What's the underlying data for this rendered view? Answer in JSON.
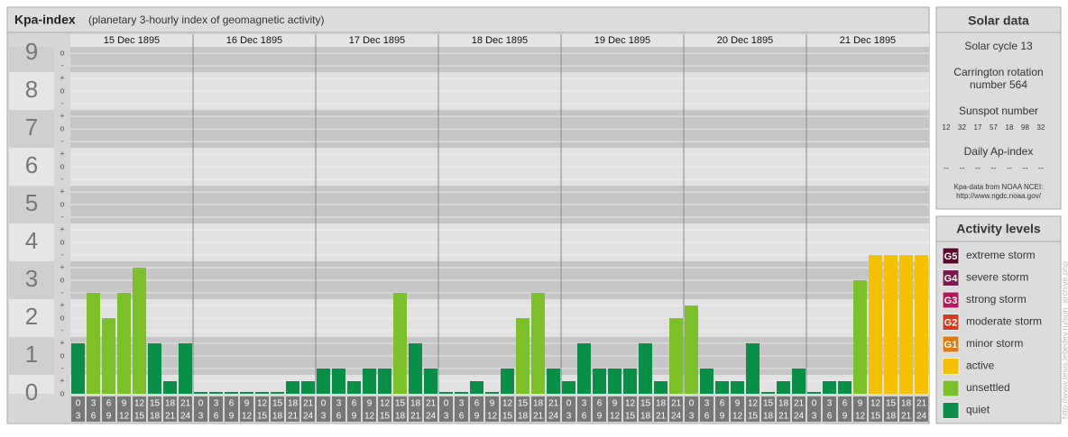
{
  "chart_data": {
    "type": "bar",
    "title": "Kpa-index",
    "subtitle": "(planetary 3-hourly index of geomagnetic activity)",
    "ylim": [
      0,
      9.17
    ],
    "major_yticks": [
      0,
      1,
      2,
      3,
      4,
      5,
      6,
      7,
      8,
      9
    ],
    "yticks": [
      {
        "value": 0,
        "label": "o"
      },
      {
        "value": 0.333,
        "label": "+"
      },
      {
        "value": 0.667,
        "label": "-"
      },
      {
        "value": 1,
        "label": "o"
      },
      {
        "value": 1.333,
        "label": "+"
      },
      {
        "value": 1.667,
        "label": "-"
      },
      {
        "value": 2,
        "label": "o"
      },
      {
        "value": 2.333,
        "label": "+"
      },
      {
        "value": 2.667,
        "label": "-"
      },
      {
        "value": 3,
        "label": "o"
      },
      {
        "value": 3.333,
        "label": "+"
      },
      {
        "value": 3.667,
        "label": "-"
      },
      {
        "value": 4,
        "label": "o"
      },
      {
        "value": 4.333,
        "label": "+"
      },
      {
        "value": 4.667,
        "label": "-"
      },
      {
        "value": 5,
        "label": "o"
      },
      {
        "value": 5.333,
        "label": "+"
      },
      {
        "value": 5.667,
        "label": "-"
      },
      {
        "value": 6,
        "label": "o"
      },
      {
        "value": 6.333,
        "label": "+"
      },
      {
        "value": 6.667,
        "label": "-"
      },
      {
        "value": 7,
        "label": "o"
      },
      {
        "value": 7.333,
        "label": "+"
      },
      {
        "value": 7.667,
        "label": "-"
      },
      {
        "value": 8,
        "label": "o"
      },
      {
        "value": 8.333,
        "label": "+"
      },
      {
        "value": 8.667,
        "label": "-"
      },
      {
        "value": 9,
        "label": "o"
      }
    ],
    "hour_start": [
      0,
      3,
      6,
      9,
      12,
      15,
      18,
      21
    ],
    "hour_end": [
      3,
      6,
      9,
      12,
      15,
      18,
      21,
      24
    ],
    "days": [
      {
        "date": "15 Dec 1895",
        "values": [
          1.333,
          2.667,
          2,
          2.667,
          3.333,
          1.333,
          0.333,
          1.333
        ],
        "colors": [
          "#0a8f48",
          "#7dc12a",
          "#7dc12a",
          "#7dc12a",
          "#7dc12a",
          "#0a8f48",
          "#0a8f48",
          "#0a8f48"
        ]
      },
      {
        "date": "16 Dec 1895",
        "values": [
          0,
          0,
          0,
          0,
          0,
          0,
          0.333,
          0.333
        ],
        "colors": [
          "#0a8f48",
          "#0a8f48",
          "#0a8f48",
          "#0a8f48",
          "#0a8f48",
          "#0a8f48",
          "#0a8f48",
          "#0a8f48"
        ]
      },
      {
        "date": "17 Dec 1895",
        "values": [
          0.667,
          0.667,
          0.333,
          0.667,
          0.667,
          2.667,
          1.333,
          0.667
        ],
        "colors": [
          "#0a8f48",
          "#0a8f48",
          "#0a8f48",
          "#0a8f48",
          "#0a8f48",
          "#7dc12a",
          "#0a8f48",
          "#0a8f48"
        ]
      },
      {
        "date": "18 Dec 1895",
        "values": [
          0,
          0,
          0.333,
          0,
          0.667,
          2,
          2.667,
          0.667
        ],
        "colors": [
          "#0a8f48",
          "#0a8f48",
          "#0a8f48",
          "#0a8f48",
          "#0a8f48",
          "#7dc12a",
          "#7dc12a",
          "#0a8f48"
        ]
      },
      {
        "date": "19 Dec 1895",
        "values": [
          0.333,
          1.333,
          0.667,
          0.667,
          0.667,
          1.333,
          0.333,
          2
        ],
        "colors": [
          "#0a8f48",
          "#0a8f48",
          "#0a8f48",
          "#0a8f48",
          "#0a8f48",
          "#0a8f48",
          "#0a8f48",
          "#7dc12a"
        ]
      },
      {
        "date": "20 Dec 1895",
        "values": [
          2.333,
          0.667,
          0.333,
          0.333,
          1.333,
          0,
          0.333,
          0.667
        ],
        "colors": [
          "#7dc12a",
          "#0a8f48",
          "#0a8f48",
          "#0a8f48",
          "#0a8f48",
          "#0a8f48",
          "#0a8f48",
          "#0a8f48"
        ]
      },
      {
        "date": "21 Dec 1895",
        "values": [
          0,
          0.333,
          0.333,
          3,
          3.667,
          3.667,
          3.667,
          3.667
        ],
        "colors": [
          "#0a8f48",
          "#0a8f48",
          "#0a8f48",
          "#7dc12a",
          "#f5c000",
          "#f5c000",
          "#f5c000",
          "#f5c000"
        ]
      }
    ]
  },
  "solar": {
    "title": "Solar data",
    "cycle": "Solar cycle 13",
    "carrington": [
      "Carrington rotation",
      "number 564"
    ],
    "sunspot_title": "Sunspot number",
    "sunspots": [
      12,
      32,
      17,
      57,
      18,
      98,
      32
    ],
    "ap_title": "Daily Ap-index",
    "ap": [
      "--",
      "--",
      "--",
      "--",
      "--",
      "--",
      "--"
    ],
    "source": [
      "Kpa-data from NOAA NCEI:",
      "http://www.ngdc.noaa.gov/"
    ]
  },
  "activity": {
    "title": "Activity levels",
    "levels": [
      {
        "badge": "G5",
        "label": "extreme storm",
        "color": "#5a0a2e"
      },
      {
        "badge": "G4",
        "label": "severe storm",
        "color": "#7a1a4e"
      },
      {
        "badge": "G3",
        "label": "strong storm",
        "color": "#b3185e"
      },
      {
        "badge": "G2",
        "label": "moderate storm",
        "color": "#d23c1c"
      },
      {
        "badge": "G1",
        "label": "minor storm",
        "color": "#e07a12"
      },
      {
        "label": "active",
        "color": "#f5c000"
      },
      {
        "label": "unsettled",
        "color": "#7dc12a"
      },
      {
        "label": "quiet",
        "color": "#0a8f48"
      }
    ]
  },
  "watermark": "http://www.tesis.lebedev.ru/sun_archive.php"
}
